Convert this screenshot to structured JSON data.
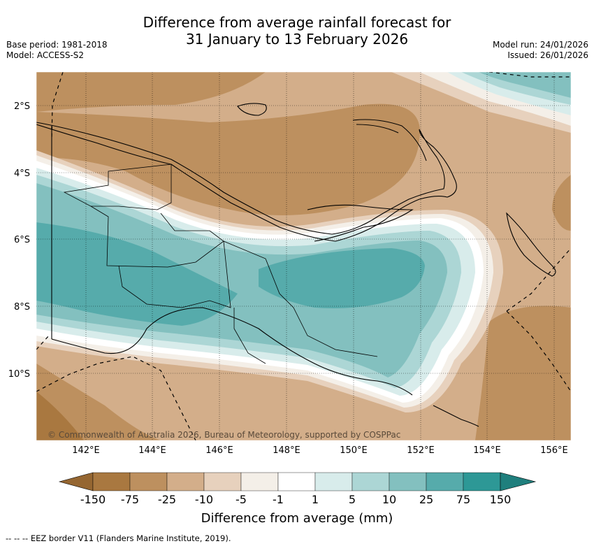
{
  "title_line1": "Difference from average rainfall forecast for",
  "title_line2": "31 January to 13 February 2026",
  "base_period": "Base period: 1981-2018",
  "model": "Model: ACCESS-S2",
  "model_run": "Model run: 24/01/2026",
  "issued": "Issued: 26/01/2026",
  "copyright": "© Commonwealth of Australia 2026, Bureau of Meteorology, supported by COSPPac",
  "lat_labels": [
    "2°S",
    "4°S",
    "6°S",
    "8°S",
    "10°S"
  ],
  "lon_labels": [
    "142°E",
    "144°E",
    "146°E",
    "148°E",
    "150°E",
    "152°E",
    "154°E",
    "156°E"
  ],
  "colorbar": {
    "title": "Difference from average (mm)",
    "ticks": [
      "-150",
      "-75",
      "-25",
      "-10",
      "-5",
      "-1",
      "1",
      "5",
      "10",
      "25",
      "75",
      "150"
    ],
    "colors": [
      "#a97840",
      "#bd905f",
      "#d3ae8a",
      "#e7d1bd",
      "#f4efe8",
      "#ffffff",
      "#d8eceb",
      "#acd6d5",
      "#83c0bf",
      "#56abab",
      "#2d9896"
    ],
    "under_color": "#956631",
    "over_color": "#1f7f7d"
  },
  "eez_note": "--  --  -- EEZ border V11 (Flanders Marine Institute, 2019)."
}
